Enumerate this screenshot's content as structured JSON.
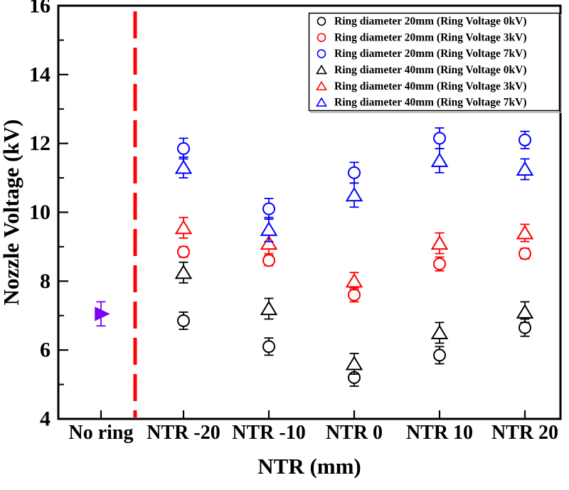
{
  "chart_data": {
    "type": "scatter",
    "title": "",
    "xlabel": "NTR (mm)",
    "ylabel": "Nozzle Voltage (kV)",
    "ylim": [
      4,
      16
    ],
    "yticks": [
      4,
      6,
      8,
      10,
      12,
      14,
      16
    ],
    "yticks_minor": [
      5,
      7,
      9,
      11,
      13,
      15
    ],
    "grid": "off",
    "legend_position": "top-right",
    "categories": [
      "No ring",
      "NTR -20",
      "NTR -10",
      "NTR 0",
      "NTR 10",
      "NTR 20"
    ],
    "series": [
      {
        "name": "Ring diameter 20mm (Ring Voltage 0kV)",
        "marker": "circle",
        "color": "#000000",
        "values": [
          null,
          6.85,
          6.1,
          5.2,
          5.85,
          6.65
        ],
        "errors": [
          null,
          0.25,
          0.25,
          0.25,
          0.25,
          0.25
        ]
      },
      {
        "name": "Ring diameter 20mm (Ring Voltage 3kV)",
        "marker": "circle",
        "color": "#ff0000",
        "values": [
          null,
          8.85,
          8.6,
          7.6,
          8.5,
          8.8
        ],
        "errors": [
          null,
          0.15,
          0.15,
          0.2,
          0.2,
          0.15
        ]
      },
      {
        "name": "Ring diameter 20mm (Ring Voltage 7kV)",
        "marker": "circle",
        "color": "#0000ff",
        "values": [
          null,
          11.85,
          10.1,
          11.15,
          12.15,
          12.1
        ],
        "errors": [
          null,
          0.3,
          0.3,
          0.3,
          0.3,
          0.25
        ]
      },
      {
        "name": "Ring diameter 40mm (Ring Voltage 0kV)",
        "marker": "triangle",
        "color": "#000000",
        "values": [
          null,
          8.25,
          7.2,
          5.6,
          6.5,
          7.1
        ],
        "errors": [
          null,
          0.3,
          0.3,
          0.3,
          0.3,
          0.3
        ]
      },
      {
        "name": "Ring diameter 40mm (Ring Voltage 3kV)",
        "marker": "triangle",
        "color": "#ff0000",
        "values": [
          null,
          9.55,
          9.1,
          8.0,
          9.1,
          9.4
        ],
        "errors": [
          null,
          0.3,
          0.3,
          0.25,
          0.3,
          0.25
        ]
      },
      {
        "name": "Ring diameter 40mm (Ring Voltage 7kV)",
        "marker": "triangle",
        "color": "#0000ff",
        "values": [
          null,
          11.3,
          9.5,
          10.5,
          11.5,
          11.25
        ],
        "errors": [
          null,
          0.3,
          0.35,
          0.35,
          0.35,
          0.3
        ]
      }
    ],
    "no_ring_point": {
      "category": "No ring",
      "value": 7.05,
      "error": 0.35,
      "marker": "triangle-right",
      "color": "#7d00f5"
    },
    "divider_line": {
      "color": "#ff0000",
      "style": "dashed",
      "between": [
        "No ring",
        "NTR -20"
      ]
    }
  }
}
